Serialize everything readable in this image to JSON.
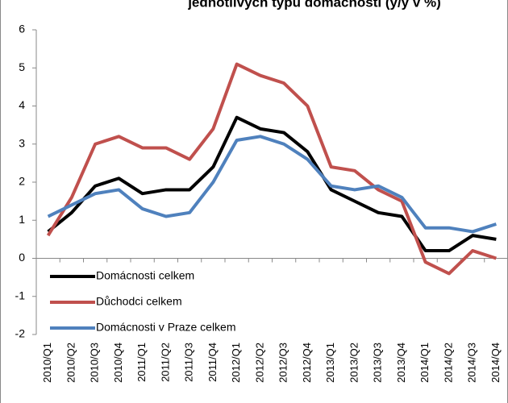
{
  "chart_data": {
    "type": "line",
    "title": "jednotlivých typů domácností (y/y v %)",
    "categories": [
      "2010/Q1",
      "2010/Q2",
      "2010/Q3",
      "2010/Q4",
      "2011/Q1",
      "2011/Q2",
      "2011/Q3",
      "2011/Q4",
      "2012/Q1",
      "2012/Q2",
      "2012/Q3",
      "2012/Q4",
      "2013/Q1",
      "2013/Q2",
      "2013/Q3",
      "2013/Q4",
      "2014/Q1",
      "2014/Q2",
      "2014/Q3",
      "2014/Q4"
    ],
    "series": [
      {
        "name": "Domácnosti celkem",
        "color": "#000000",
        "values": [
          0.7,
          1.2,
          1.9,
          2.1,
          1.7,
          1.8,
          1.8,
          2.4,
          3.7,
          3.4,
          3.3,
          2.8,
          1.8,
          1.5,
          1.2,
          1.1,
          0.2,
          0.2,
          0.6,
          0.5
        ]
      },
      {
        "name": "Důchodci celkem",
        "color": "#c0504d",
        "values": [
          0.6,
          1.6,
          3.0,
          3.2,
          2.9,
          2.9,
          2.6,
          3.4,
          5.1,
          4.8,
          4.6,
          4.0,
          2.4,
          2.3,
          1.8,
          1.5,
          -0.1,
          -0.4,
          0.2,
          0.0
        ]
      },
      {
        "name": "Domácnosti v Praze celkem",
        "color": "#4f81bd",
        "values": [
          1.1,
          1.4,
          1.7,
          1.8,
          1.3,
          1.1,
          1.2,
          2.0,
          3.1,
          3.2,
          3.0,
          2.6,
          1.9,
          1.8,
          1.9,
          1.6,
          0.8,
          0.8,
          0.7,
          0.9
        ]
      }
    ],
    "ylim": [
      -2,
      6
    ],
    "yticks": [
      -2,
      -1,
      0,
      1,
      2,
      3,
      4,
      5,
      6
    ],
    "legend": "lower-left"
  }
}
